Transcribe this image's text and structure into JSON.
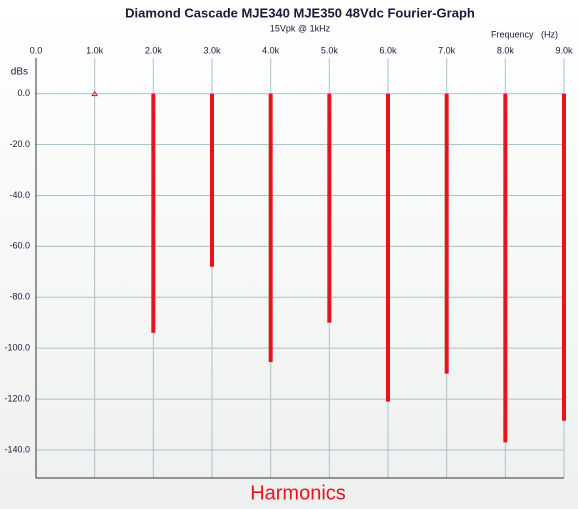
{
  "chart_data": {
    "type": "stem",
    "title": "Diamond Cascade MJE340 MJE350 48Vdc Fourier-Graph",
    "subtitle": "15Vpk @ 1kHz",
    "x_label": "Frequency   (Hz)",
    "y_label": "dBs",
    "annotation": "Harmonics",
    "x": [
      1000,
      2000,
      3000,
      4000,
      5000,
      6000,
      7000,
      8000,
      9000
    ],
    "values": [
      0,
      -94,
      -68,
      -105.5,
      -90,
      -121,
      -110,
      -137,
      -128.5
    ],
    "color": "#e8141a",
    "xlim": [
      0,
      9000
    ],
    "xticks": [
      {
        "value": 0,
        "label": "0.0"
      },
      {
        "value": 1000,
        "label": "1.0k"
      },
      {
        "value": 2000,
        "label": "2.0k"
      },
      {
        "value": 3000,
        "label": "3.0k"
      },
      {
        "value": 4000,
        "label": "4.0k"
      },
      {
        "value": 5000,
        "label": "5.0k"
      },
      {
        "value": 6000,
        "label": "6.0k"
      },
      {
        "value": 7000,
        "label": "7.0k"
      },
      {
        "value": 8000,
        "label": "8.0k"
      },
      {
        "value": 9000,
        "label": "9.0k"
      }
    ],
    "ylim": [
      -151,
      14
    ],
    "yticks": [
      {
        "value": 0,
        "label": "0.0"
      },
      {
        "value": -20,
        "label": "-20.0"
      },
      {
        "value": -40,
        "label": "-40.0"
      },
      {
        "value": -60,
        "label": "-60.0"
      },
      {
        "value": -80,
        "label": "-80.0"
      },
      {
        "value": -100,
        "label": "-100.0"
      },
      {
        "value": -120,
        "label": "-120.0"
      },
      {
        "value": -140,
        "label": "-140.0"
      }
    ],
    "grid": true
  }
}
